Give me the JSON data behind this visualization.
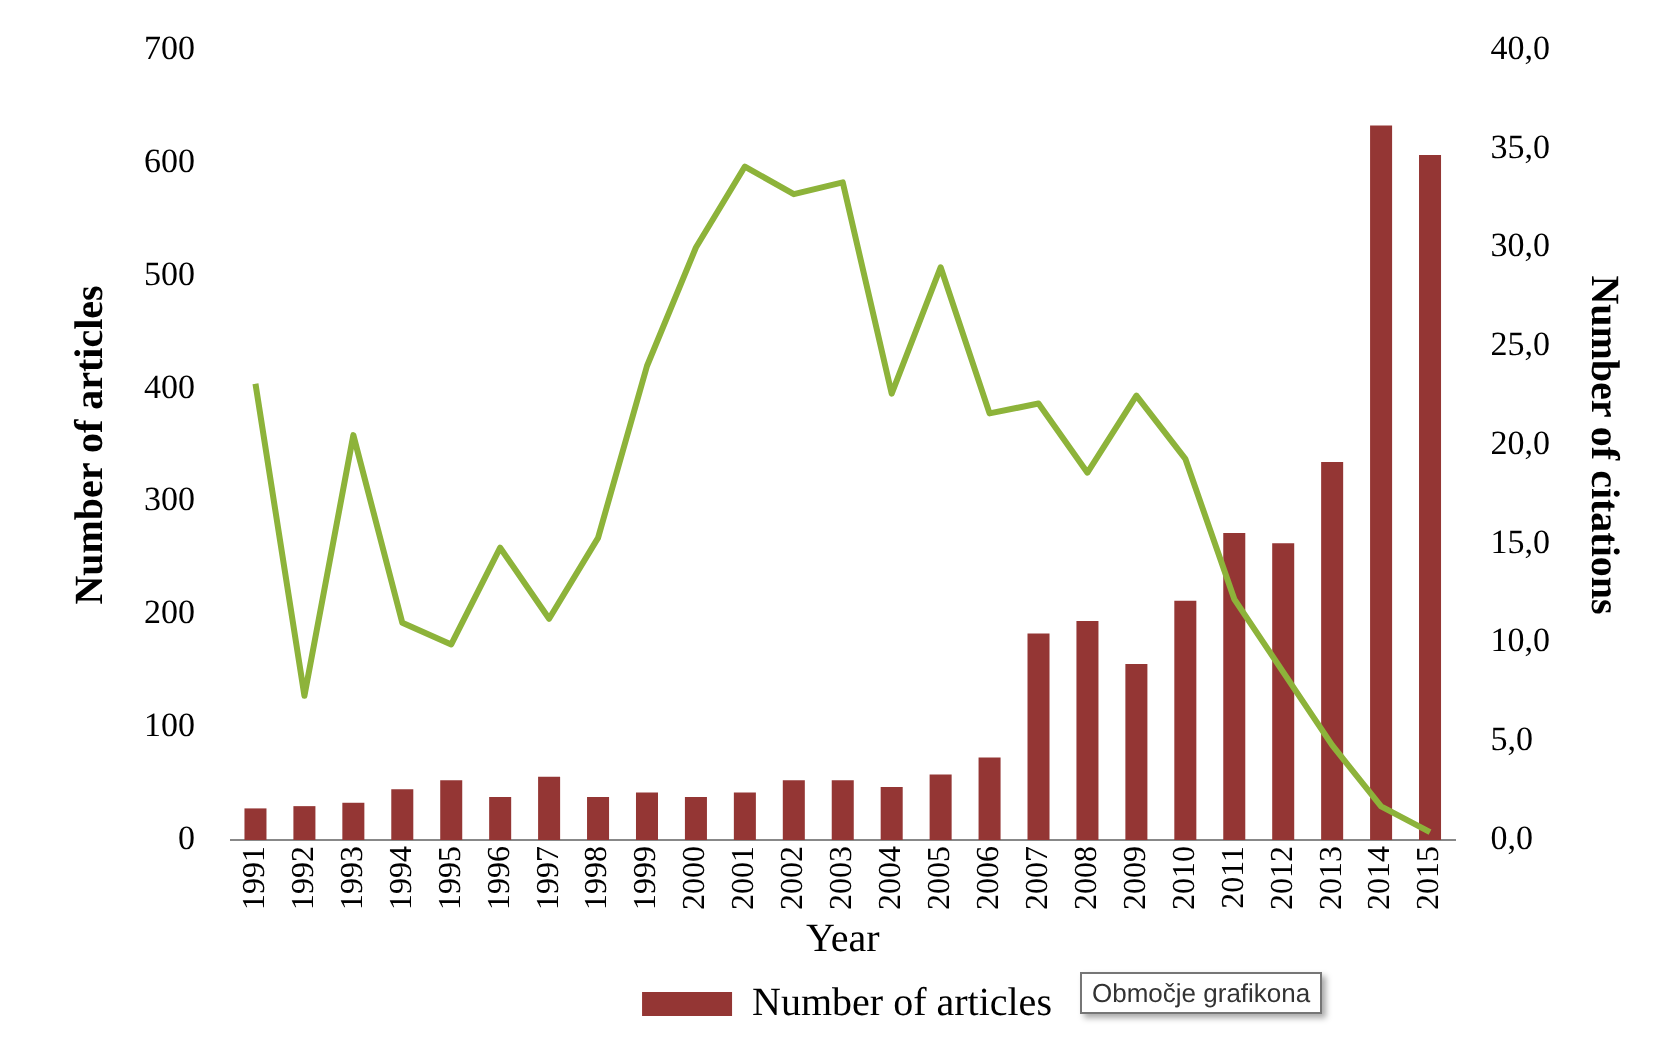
{
  "chart_data": {
    "type": "bar",
    "xlabel": "Year",
    "ylabel": "Number of articles",
    "y2label": "Number of citations",
    "categories": [
      "1991",
      "1992",
      "1993",
      "1994",
      "1995",
      "1996",
      "1997",
      "1998",
      "1999",
      "2000",
      "2001",
      "2002",
      "2003",
      "2004",
      "2005",
      "2006",
      "2007",
      "2008",
      "2009",
      "2010",
      "2011",
      "2012",
      "2013",
      "2014",
      "2015"
    ],
    "series": [
      {
        "name": "Number of articles",
        "color": "#943634",
        "values": [
          28,
          30,
          33,
          45,
          53,
          38,
          56,
          38,
          42,
          38,
          42,
          53,
          53,
          47,
          58,
          73,
          183,
          194,
          156,
          212,
          272,
          263,
          335,
          633,
          607
        ]
      },
      {
        "type": "line",
        "axis": "y2",
        "color": "#8db33a",
        "values": [
          23.1,
          7.3,
          20.5,
          11.0,
          9.9,
          14.8,
          11.2,
          15.3,
          24.0,
          30.0,
          34.1,
          32.7,
          33.3,
          22.6,
          29.0,
          21.6,
          22.1,
          18.6,
          22.5,
          19.3,
          12.2,
          8.5,
          4.8,
          1.7,
          0.4
        ]
      }
    ],
    "ylim": [
      0,
      700
    ],
    "yticks": [
      0,
      100,
      200,
      300,
      400,
      500,
      600,
      700
    ],
    "y2lim": [
      0,
      40
    ],
    "y2ticks": [
      {
        "value": 0,
        "label": "0,0"
      },
      {
        "value": 5,
        "label": "5,0"
      },
      {
        "value": 10,
        "label": "10,0"
      },
      {
        "value": 15,
        "label": "15,0"
      },
      {
        "value": 20,
        "label": "20,0"
      },
      {
        "value": 25,
        "label": "25,0"
      },
      {
        "value": 30,
        "label": "30,0"
      },
      {
        "value": 35,
        "label": "35,0"
      },
      {
        "value": 40,
        "label": "40,0"
      }
    ],
    "grid": false,
    "legend": "bottom",
    "marker": "none",
    "annotations": [
      "Območje grafikona"
    ]
  }
}
